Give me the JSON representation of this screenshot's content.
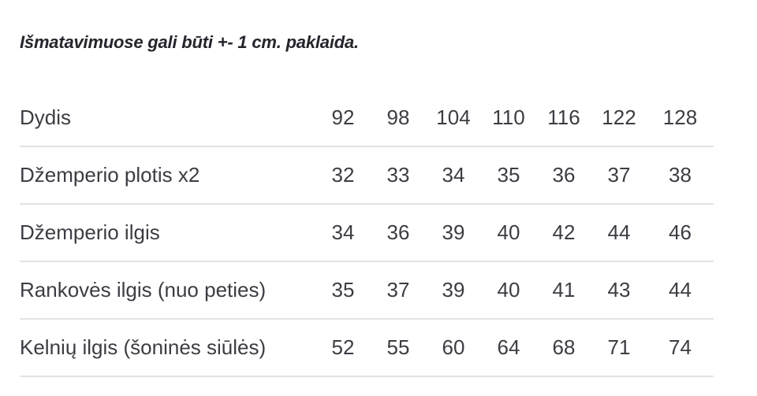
{
  "note": "Išmatavimuose gali būti +- 1 cm. paklaida.",
  "chart_data": {
    "type": "table",
    "title": "Išmatavimuose gali būti +- 1 cm. paklaida.",
    "columns": [
      "Dydis",
      "92",
      "98",
      "104",
      "110",
      "116",
      "122",
      "128"
    ],
    "rows": [
      [
        "Džemperio plotis x2",
        32,
        33,
        34,
        35,
        36,
        37,
        38
      ],
      [
        "Džemperio ilgis",
        34,
        36,
        39,
        40,
        42,
        44,
        46
      ],
      [
        "Rankovės ilgis (nuo peties)",
        35,
        37,
        39,
        40,
        41,
        43,
        44
      ],
      [
        "Kelnių ilgis (šoninės siūlės)",
        52,
        55,
        60,
        64,
        68,
        71,
        74
      ]
    ],
    "units": "cm",
    "layout": "first column is measurement label, remaining columns are child sizes; light gray horizontal dividers under every row"
  },
  "colors": {
    "background": "#ffffff",
    "title_text": "#26242c",
    "table_text": "#3d3c43",
    "divider": "#e3e3e3"
  }
}
